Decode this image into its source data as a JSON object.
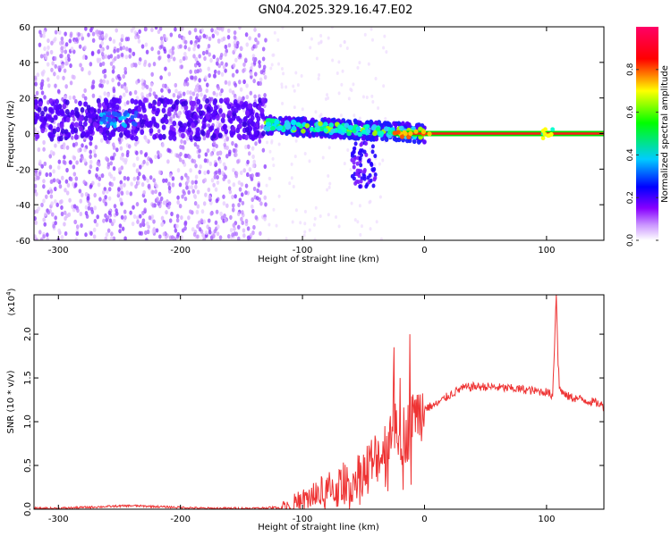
{
  "title": "GN04.2025.329.16.47.E02",
  "chart_data": [
    {
      "id": "spectrogram",
      "type": "heatmap",
      "xlabel": "Height of straight line (km)",
      "ylabel": "Frequency (Hz)",
      "xlim": [
        -320,
        147
      ],
      "ylim": [
        -60,
        60
      ],
      "x_ticks": [
        -300,
        -200,
        -100,
        0,
        100
      ],
      "y_ticks": [
        -60,
        -40,
        -20,
        0,
        20,
        40,
        60
      ],
      "colorbar": {
        "label": "Normalized spectral amplitude",
        "range": [
          0,
          1
        ],
        "ticks": [
          0.0,
          0.2,
          0.4,
          0.6,
          0.8
        ],
        "colormap": [
          "#ffffff",
          "#9900ff",
          "#0000ff",
          "#00ffff",
          "#00ff00",
          "#ffff00",
          "#ff0000",
          "#ff0066"
        ]
      },
      "features": {
        "noise_region_x": [
          -320,
          -130
        ],
        "dense_band_x": [
          -320,
          -130
        ],
        "dense_band_freq": 8,
        "drift_track_x": [
          -130,
          0
        ],
        "drift_track_freq_start": 5,
        "drift_track_freq_end": 0,
        "carrier_x": [
          -25,
          147
        ],
        "carrier_freq": 0
      }
    },
    {
      "id": "snr",
      "type": "line",
      "xlabel": "Height of straight line (km)",
      "ylabel": "SNR (10 * v/v)",
      "y_multiplier": "(x10",
      "y_multiplier_exp": "4",
      "xlim": [
        -320,
        147
      ],
      "ylim": [
        0,
        2.45
      ],
      "x_ticks": [
        -300,
        -200,
        -100,
        0,
        100
      ],
      "y_ticks": [
        0.0,
        0.5,
        1.0,
        1.5,
        2.0
      ],
      "line_color": "#ee3333",
      "series": [
        {
          "x": [
            -320,
            -300,
            -280,
            -260,
            -240,
            -220,
            -200,
            -180,
            -160,
            -140,
            -120,
            -110,
            -100,
            -90,
            -80,
            -70,
            -60,
            -50,
            -40,
            -30,
            -25,
            -20,
            -15,
            -10,
            -5,
            0,
            10,
            20,
            30,
            40,
            50,
            60,
            70,
            80,
            90,
            100,
            105,
            108,
            110,
            115,
            120,
            130,
            140,
            147
          ],
          "y": [
            0.01,
            0.01,
            0.02,
            0.03,
            0.04,
            0.03,
            0.02,
            0.01,
            0.01,
            0.01,
            0.02,
            0.05,
            0.1,
            0.16,
            0.2,
            0.25,
            0.3,
            0.4,
            0.55,
            0.75,
            1.2,
            0.9,
            0.85,
            1.0,
            1.1,
            1.15,
            1.2,
            1.3,
            1.38,
            1.4,
            1.4,
            1.39,
            1.38,
            1.37,
            1.35,
            1.34,
            1.3,
            2.45,
            1.4,
            1.3,
            1.28,
            1.25,
            1.22,
            1.18
          ]
        }
      ],
      "spikes": [
        {
          "x": -25,
          "y": 1.85
        },
        {
          "x": -20,
          "y": 1.5
        },
        {
          "x": -12,
          "y": 2.0
        },
        {
          "x": -8,
          "y": 1.25
        },
        {
          "x": 108,
          "y": 2.45
        }
      ]
    }
  ]
}
